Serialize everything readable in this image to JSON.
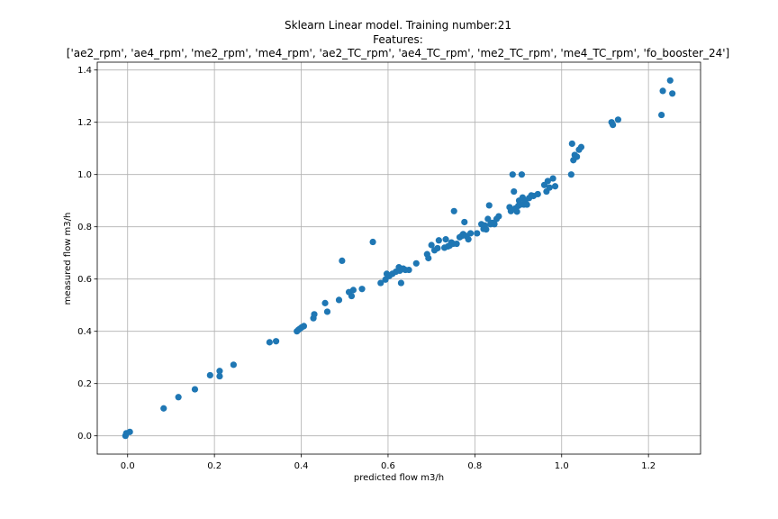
{
  "chart_data": {
    "type": "scatter",
    "title_lines": [
      "Sklearn Linear model. Training number:21",
      "Features:",
      "['ae2_rpm', 'ae4_rpm', 'me2_rpm', 'me4_rpm', 'ae2_TC_rpm', 'ae4_TC_rpm', 'me2_TC_rpm', 'me4_TC_rpm', 'fo_booster_24']"
    ],
    "xlabel": "predicted flow m3/h",
    "ylabel": "measured flow m3/h",
    "xlim": [
      -0.07,
      1.32
    ],
    "ylim": [
      -0.07,
      1.43
    ],
    "xticks": [
      0.0,
      0.2,
      0.4,
      0.6,
      0.8,
      1.0,
      1.2
    ],
    "xtick_labels": [
      "0.0",
      "0.2",
      "0.4",
      "0.6",
      "0.8",
      "1.0",
      "1.2"
    ],
    "yticks": [
      0.0,
      0.2,
      0.4,
      0.6,
      0.8,
      1.0,
      1.2,
      1.4
    ],
    "ytick_labels": [
      "0.0",
      "0.2",
      "0.4",
      "0.6",
      "0.8",
      "1.0",
      "1.2",
      "1.4"
    ],
    "grid": true,
    "color": "#1f77b4",
    "points": [
      [
        -0.005,
        0.0
      ],
      [
        -0.003,
        0.01
      ],
      [
        0.005,
        0.015
      ],
      [
        0.083,
        0.105
      ],
      [
        0.117,
        0.148
      ],
      [
        0.155,
        0.178
      ],
      [
        0.19,
        0.232
      ],
      [
        0.212,
        0.228
      ],
      [
        0.212,
        0.248
      ],
      [
        0.244,
        0.272
      ],
      [
        0.327,
        0.358
      ],
      [
        0.342,
        0.362
      ],
      [
        0.39,
        0.4
      ],
      [
        0.393,
        0.405
      ],
      [
        0.397,
        0.41
      ],
      [
        0.401,
        0.415
      ],
      [
        0.406,
        0.42
      ],
      [
        0.428,
        0.45
      ],
      [
        0.43,
        0.465
      ],
      [
        0.455,
        0.508
      ],
      [
        0.46,
        0.475
      ],
      [
        0.487,
        0.52
      ],
      [
        0.494,
        0.67
      ],
      [
        0.51,
        0.55
      ],
      [
        0.516,
        0.535
      ],
      [
        0.52,
        0.558
      ],
      [
        0.54,
        0.562
      ],
      [
        0.565,
        0.742
      ],
      [
        0.583,
        0.585
      ],
      [
        0.594,
        0.598
      ],
      [
        0.597,
        0.62
      ],
      [
        0.603,
        0.612
      ],
      [
        0.61,
        0.62
      ],
      [
        0.618,
        0.628
      ],
      [
        0.625,
        0.645
      ],
      [
        0.627,
        0.632
      ],
      [
        0.63,
        0.585
      ],
      [
        0.635,
        0.64
      ],
      [
        0.64,
        0.635
      ],
      [
        0.648,
        0.635
      ],
      [
        0.665,
        0.66
      ],
      [
        0.69,
        0.695
      ],
      [
        0.693,
        0.68
      ],
      [
        0.7,
        0.73
      ],
      [
        0.707,
        0.71
      ],
      [
        0.714,
        0.718
      ],
      [
        0.717,
        0.748
      ],
      [
        0.73,
        0.72
      ],
      [
        0.733,
        0.752
      ],
      [
        0.738,
        0.725
      ],
      [
        0.742,
        0.728
      ],
      [
        0.746,
        0.74
      ],
      [
        0.75,
        0.735
      ],
      [
        0.752,
        0.86
      ],
      [
        0.758,
        0.735
      ],
      [
        0.765,
        0.76
      ],
      [
        0.77,
        0.765
      ],
      [
        0.773,
        0.772
      ],
      [
        0.776,
        0.818
      ],
      [
        0.78,
        0.765
      ],
      [
        0.785,
        0.752
      ],
      [
        0.79,
        0.775
      ],
      [
        0.805,
        0.775
      ],
      [
        0.815,
        0.81
      ],
      [
        0.82,
        0.792
      ],
      [
        0.823,
        0.805
      ],
      [
        0.826,
        0.79
      ],
      [
        0.83,
        0.83
      ],
      [
        0.833,
        0.882
      ],
      [
        0.836,
        0.81
      ],
      [
        0.84,
        0.815
      ],
      [
        0.845,
        0.81
      ],
      [
        0.85,
        0.83
      ],
      [
        0.855,
        0.84
      ],
      [
        0.88,
        0.875
      ],
      [
        0.883,
        0.86
      ],
      [
        0.887,
        1.0
      ],
      [
        0.89,
        0.935
      ],
      [
        0.893,
        0.87
      ],
      [
        0.897,
        0.858
      ],
      [
        0.9,
        0.88
      ],
      [
        0.902,
        0.9
      ],
      [
        0.905,
        0.885
      ],
      [
        0.908,
        1.0
      ],
      [
        0.91,
        0.912
      ],
      [
        0.913,
        0.885
      ],
      [
        0.916,
        0.9
      ],
      [
        0.92,
        0.885
      ],
      [
        0.925,
        0.91
      ],
      [
        0.93,
        0.92
      ],
      [
        0.935,
        0.918
      ],
      [
        0.945,
        0.925
      ],
      [
        0.96,
        0.96
      ],
      [
        0.965,
        0.935
      ],
      [
        0.968,
        0.975
      ],
      [
        0.972,
        0.95
      ],
      [
        0.98,
        0.985
      ],
      [
        0.985,
        0.955
      ],
      [
        1.022,
        1.0
      ],
      [
        1.024,
        1.118
      ],
      [
        1.027,
        1.055
      ],
      [
        1.03,
        1.075
      ],
      [
        1.035,
        1.068
      ],
      [
        1.04,
        1.095
      ],
      [
        1.045,
        1.105
      ],
      [
        1.115,
        1.2
      ],
      [
        1.118,
        1.19
      ],
      [
        1.13,
        1.21
      ],
      [
        1.23,
        1.228
      ],
      [
        1.233,
        1.32
      ],
      [
        1.25,
        1.36
      ],
      [
        1.255,
        1.31
      ]
    ]
  }
}
